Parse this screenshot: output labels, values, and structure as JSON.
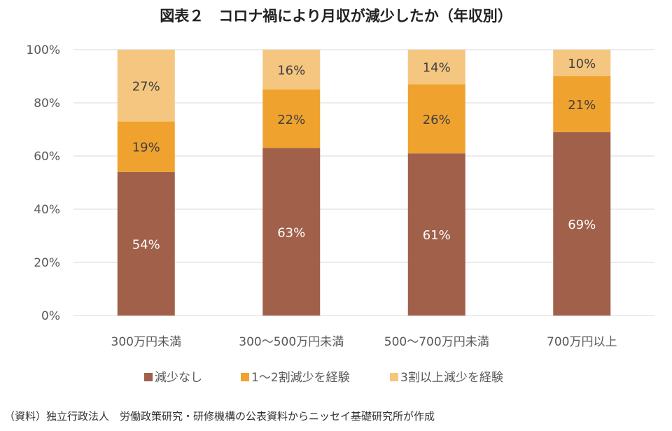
{
  "chart_data": {
    "type": "bar",
    "stacked": true,
    "title": "図表２　コロナ禍により月収が減少したか（年収別）",
    "categories": [
      "300万円未満",
      "300～500万円未満",
      "500～700万円未満",
      "700万円以上"
    ],
    "series": [
      {
        "name": "減少なし",
        "values": [
          54,
          63,
          61,
          69
        ],
        "color": "#A0604A",
        "label_color": "#FFFFFF"
      },
      {
        "name": "1～2割減少を経験",
        "values": [
          19,
          22,
          26,
          21
        ],
        "color": "#EFA22E",
        "label_color": "#404040"
      },
      {
        "name": "3割以上減少を経験",
        "values": [
          27,
          16,
          14,
          10
        ],
        "color": "#F4C67F",
        "label_color": "#404040"
      }
    ],
    "value_suffix": "%",
    "ylim": [
      0,
      100
    ],
    "yticks": [
      "0%",
      "20%",
      "40%",
      "60%",
      "80%",
      "100%"
    ],
    "ytick_values": [
      0,
      20,
      40,
      60,
      80,
      100
    ],
    "grid": true,
    "legend_position": "bottom",
    "xlabel": "",
    "ylabel": ""
  },
  "source": "（資料）独立行政法人　労働政策研究・研修機構の公表資料からニッセイ基礎研究所が作成"
}
